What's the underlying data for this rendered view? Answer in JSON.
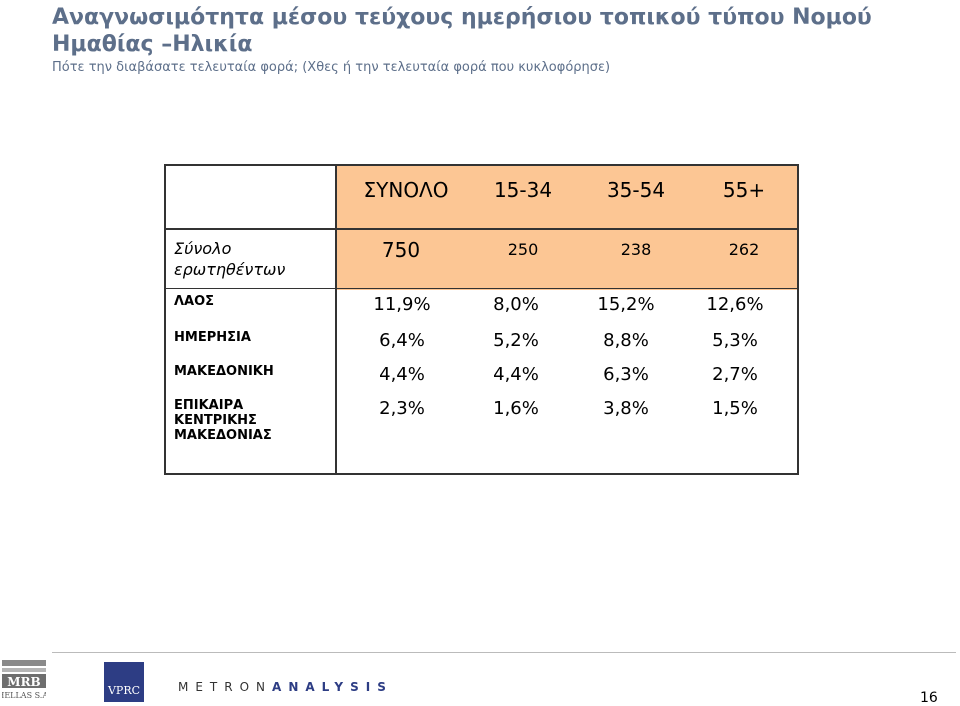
{
  "title_line1": "Αναγνωσιμότητα μέσου τεύχους ημερήσιου τοπικού τύπου Νομού",
  "title_line2": "Ημαθίας –Ηλικία",
  "subtitle": "Πότε την διαβάσατε τελευταία φορά; (Χθες ή την τελευταία φορά που κυκλοφόρησε)",
  "table": {
    "columns": [
      "ΣΥΝΟΛΟ",
      "15-34",
      "35-54",
      "55+"
    ],
    "base_label": "Σύνολο ερωτηθέντων",
    "base": [
      "750",
      "250",
      "238",
      "262"
    ],
    "rows": [
      {
        "label": "ΛΑΟΣ",
        "values": [
          "11,9%",
          "8,0%",
          "15,2%",
          "12,6%"
        ]
      },
      {
        "label": "ΗΜΕΡΗΣΙΑ",
        "values": [
          "6,4%",
          "5,2%",
          "8,8%",
          "5,3%"
        ]
      },
      {
        "label": "ΜΑΚΕΔΟΝΙΚΗ",
        "values": [
          "4,4%",
          "4,4%",
          "6,3%",
          "2,7%"
        ]
      },
      {
        "label": "ΕΠΙΚΑΙΡΑ ΚΕΝΤΡΙΚΗΣ ΜΑΚΕΔΟΝΙΑΣ",
        "label_lines": [
          "ΕΠΙΚΑΙΡΑ",
          "ΚΕΝΤΡΙΚΗΣ",
          "ΜΑΚΕΔΟΝΙΑΣ"
        ],
        "values": [
          "2,3%",
          "1,6%",
          "3,8%",
          "1,5%"
        ]
      }
    ]
  },
  "footer": {
    "logo_mrb": "MRB",
    "logo_mrb_sub": "HELLAS S.A.",
    "logo_vprc": "VPRC",
    "metron_a": "METRON",
    "metron_b": "ANALYSIS",
    "page_number": "16"
  },
  "colors": {
    "title": "#5d6f8a",
    "header_fill": "#fcc694",
    "vprc_blue": "#2d3d84"
  }
}
